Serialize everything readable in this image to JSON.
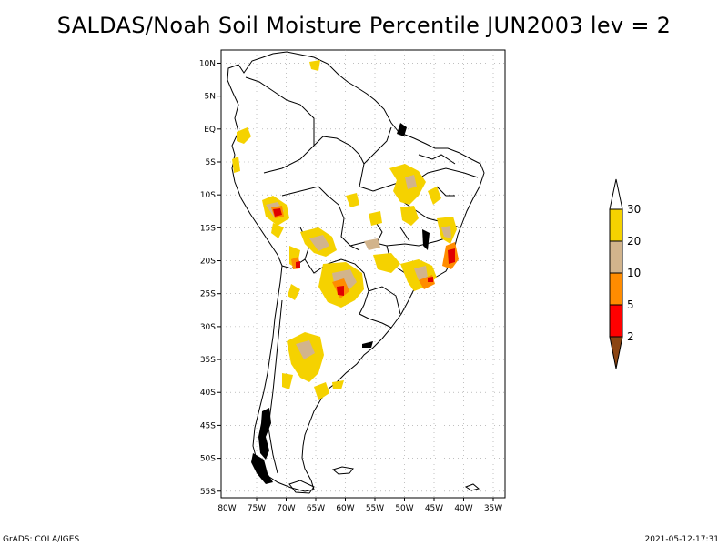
{
  "title": "SALDAS/Noah Soil Moisture Percentile JUN2003 lev = 2",
  "footer": {
    "left": "GrADS: COLA/IGES",
    "right": "2021-05-12-17:31"
  },
  "map": {
    "lat_labels": [
      "10N",
      "5N",
      "EQ",
      "5S",
      "10S",
      "15S",
      "20S",
      "25S",
      "30S",
      "35S",
      "40S",
      "45S",
      "50S",
      "55S"
    ],
    "lon_labels": [
      "80W",
      "75W",
      "70W",
      "65W",
      "60W",
      "55W",
      "50W",
      "45W",
      "40W",
      "35W"
    ],
    "lat_values": [
      10,
      5,
      0,
      -5,
      -10,
      -15,
      -20,
      -25,
      -30,
      -35,
      -40,
      -45,
      -50,
      -55
    ],
    "lon_values": [
      -80,
      -75,
      -70,
      -65,
      -60,
      -55,
      -50,
      -45,
      -40,
      -35
    ],
    "lat_range": [
      -56,
      12
    ],
    "lon_range": [
      -81,
      -33
    ],
    "grid": true
  },
  "colorbar": {
    "labels": [
      "30",
      "20",
      "10",
      "5",
      "2"
    ],
    "colors": {
      "above_30": "#ffffff",
      "20_30": "#f5d200",
      "10_20": "#d2b48c",
      "5_10": "#ff8c00",
      "2_5": "#ff0000",
      "below_2": "#8b4513"
    }
  },
  "colors": {
    "dry_yellow": "#f0c800",
    "tan": "#d2b48c",
    "orange": "#ff8c00",
    "red": "#e00000"
  }
}
